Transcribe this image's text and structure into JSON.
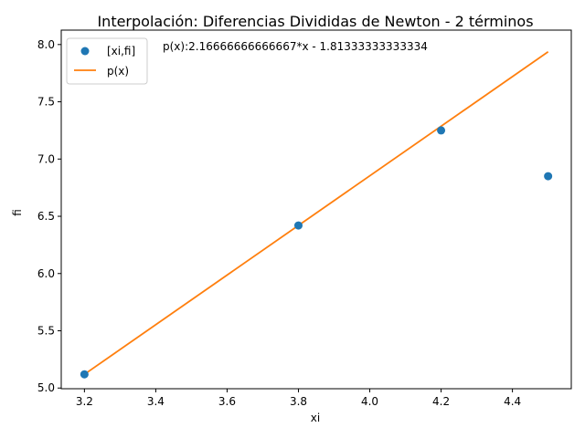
{
  "chart_data": {
    "type": "scatter",
    "title": "Interpolación: Diferencias Divididas de Newton - 2 términos",
    "xlabel": "xi",
    "ylabel": "fi",
    "xlim": [
      3.135,
      4.565
    ],
    "ylim": [
      4.994,
      8.126
    ],
    "x_ticks": [
      3.2,
      3.4,
      3.6,
      3.8,
      4.0,
      4.2,
      4.4
    ],
    "x_tick_labels": [
      "3.2",
      "3.4",
      "3.6",
      "3.8",
      "4.0",
      "4.2",
      "4.4"
    ],
    "y_ticks": [
      5.0,
      5.5,
      6.0,
      6.5,
      7.0,
      7.5,
      8.0
    ],
    "y_tick_labels": [
      "5.0",
      "5.5",
      "6.0",
      "6.5",
      "7.0",
      "7.5",
      "8.0"
    ],
    "grid": false,
    "legend_position": "top-left",
    "annotation": "p(x):2.16666666666667*x - 1.81333333333334",
    "series": [
      {
        "name": "[xi,fi]",
        "kind": "scatter",
        "color": "#1f77b4",
        "x": [
          3.2,
          3.8,
          4.2,
          4.5
        ],
        "y": [
          5.12,
          6.42,
          7.25,
          6.85
        ]
      },
      {
        "name": "p(x)",
        "kind": "line",
        "color": "#ff7f0e",
        "x": [
          3.2,
          4.5
        ],
        "y": [
          5.12,
          7.9367
        ]
      }
    ]
  }
}
